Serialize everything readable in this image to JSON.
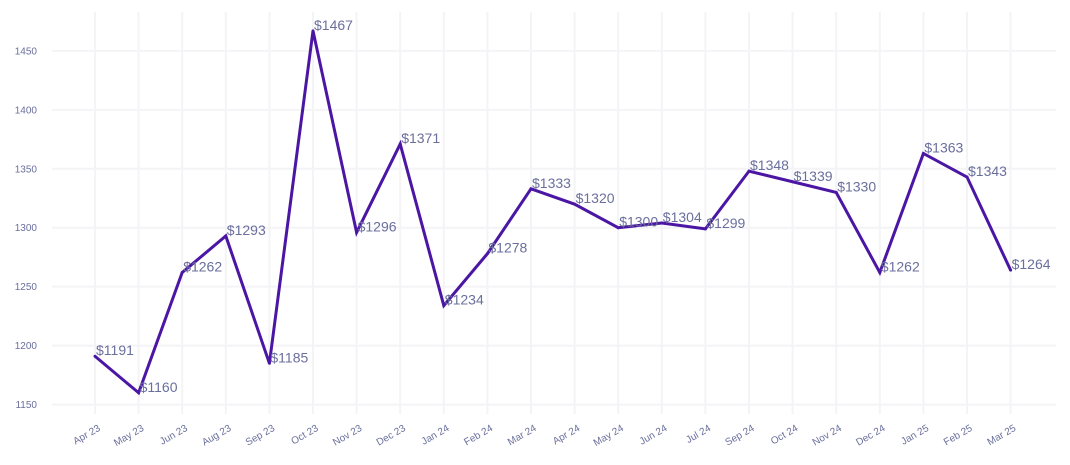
{
  "chart_data": {
    "type": "line",
    "title": "",
    "xlabel": "",
    "ylabel": "",
    "categories": [
      "Apr 23",
      "May 23",
      "Jun 23",
      "Aug 23",
      "Sep 23",
      "Oct 23",
      "Nov 23",
      "Dec 23",
      "Jan 24",
      "Feb 24",
      "Mar 24",
      "Apr 24",
      "May 24",
      "Jun 24",
      "Jul 24",
      "Sep 24",
      "Oct 24",
      "Nov 24",
      "Dec 24",
      "Jan 25",
      "Feb 25",
      "Mar 25"
    ],
    "series": [
      {
        "values": [
          1191,
          1160,
          1262,
          1293,
          1185,
          1467,
          1296,
          1371,
          1234,
          1278,
          1333,
          1320,
          1300,
          1304,
          1299,
          1348,
          1339,
          1330,
          1262,
          1363,
          1343,
          1264
        ]
      }
    ],
    "data_labels": [
      "$1191",
      "$1160",
      "$1262",
      "$1293",
      "$1185",
      "$1467",
      "$1296",
      "$1371",
      "$1234",
      "$1278",
      "$1333",
      "$1320",
      "$1300",
      "$1304",
      "$1299",
      "$1348",
      "",
      "$1330",
      "$1262",
      "$1363",
      "$1343",
      "$1264"
    ],
    "extra_labels": [
      {
        "text": "$1339",
        "x": "Oct 24",
        "y": 1339
      }
    ],
    "y_ticks": [
      1150,
      1200,
      1250,
      1300,
      1350,
      1400,
      1450
    ],
    "ylim": [
      1142,
      1483
    ],
    "grid": true,
    "legend": "none",
    "colors": {
      "line": "#4b16a3",
      "text": "#6a6f9c",
      "grid": "#f4f4f7"
    }
  }
}
